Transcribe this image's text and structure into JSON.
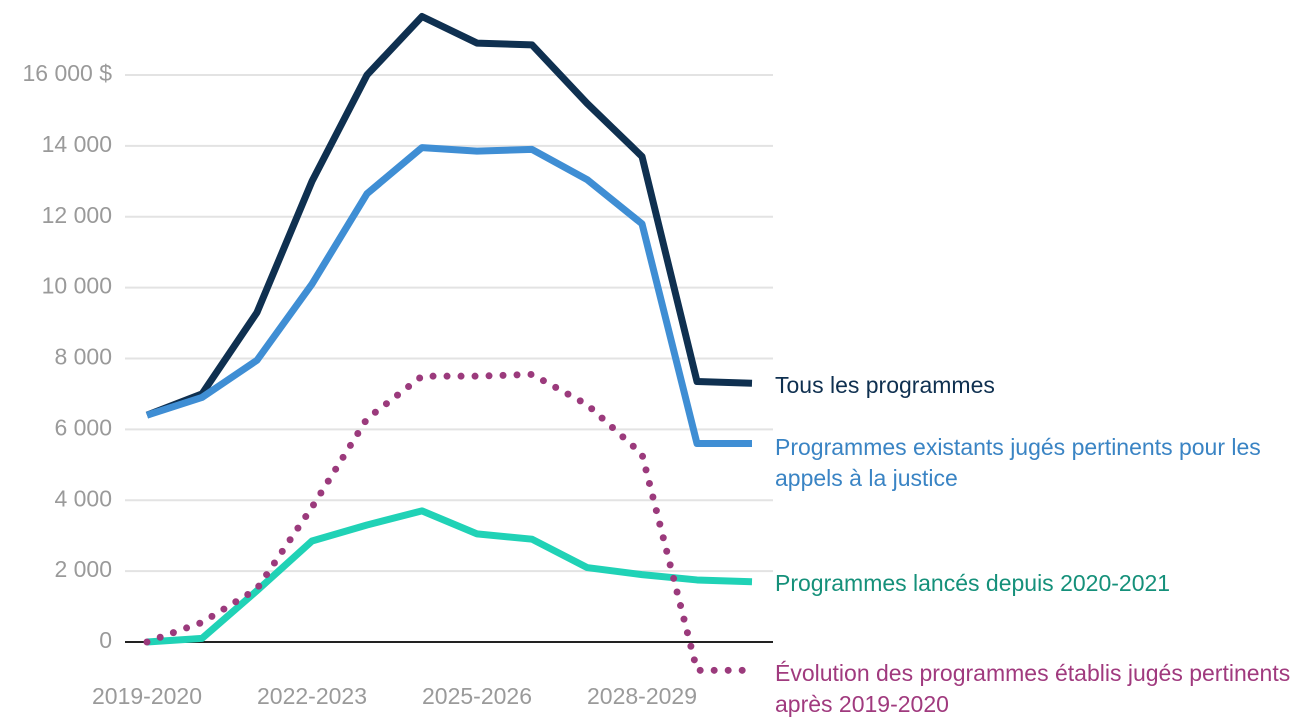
{
  "chart_data": {
    "type": "line",
    "categories": [
      "2019-2020",
      null,
      null,
      "2022-2023",
      null,
      null,
      "2025-2026",
      null,
      null,
      "2028-2029",
      null,
      null
    ],
    "series": [
      {
        "name": "Tous les programmes",
        "color": "#0f3050",
        "label_color": "#0f3050",
        "style": "solid",
        "values": [
          6400,
          7000,
          9300,
          13000,
          16000,
          17650,
          16900,
          16850,
          15200,
          13700,
          7350,
          7300
        ]
      },
      {
        "name": "Programmes existants jugés pertinents pour les appels à la justice",
        "color": "#3f8ed4",
        "label_color": "#3a84c4",
        "style": "solid",
        "values": [
          6400,
          6900,
          7950,
          10100,
          12650,
          13950,
          13850,
          13900,
          13050,
          11800,
          5600,
          5600
        ]
      },
      {
        "name": "Programmes lancés depuis 2020-2021",
        "color": "#20d2b6",
        "label_color": "#15907a",
        "style": "solid",
        "values": [
          0,
          100,
          1450,
          2850,
          3300,
          3700,
          3050,
          2900,
          2100,
          1900,
          1750,
          1700
        ]
      },
      {
        "name": "Évolution des programmes établis jugés pertinents après 2019-2020",
        "color": "#9b3a7c",
        "label_color": "#a03a7e",
        "style": "dotted",
        "values": [
          0,
          550,
          1500,
          3800,
          6300,
          7500,
          7500,
          7550,
          6700,
          5300,
          -800,
          -800
        ]
      }
    ],
    "ylim": [
      -1000,
      18000
    ],
    "yticks": [
      0,
      {
        "value": 2000,
        "label": "2 000"
      },
      {
        "value": 4000,
        "label": "4 000"
      },
      {
        "value": 6000,
        "label": "6 000"
      },
      {
        "value": 8000,
        "label": "8 000"
      },
      {
        "value": 10000,
        "label": "10 000"
      },
      {
        "value": 12000,
        "label": "12 000"
      },
      {
        "value": 14000,
        "label": "14 000"
      },
      {
        "value": 16000,
        "label": "16 000 $"
      }
    ],
    "grid": true
  }
}
